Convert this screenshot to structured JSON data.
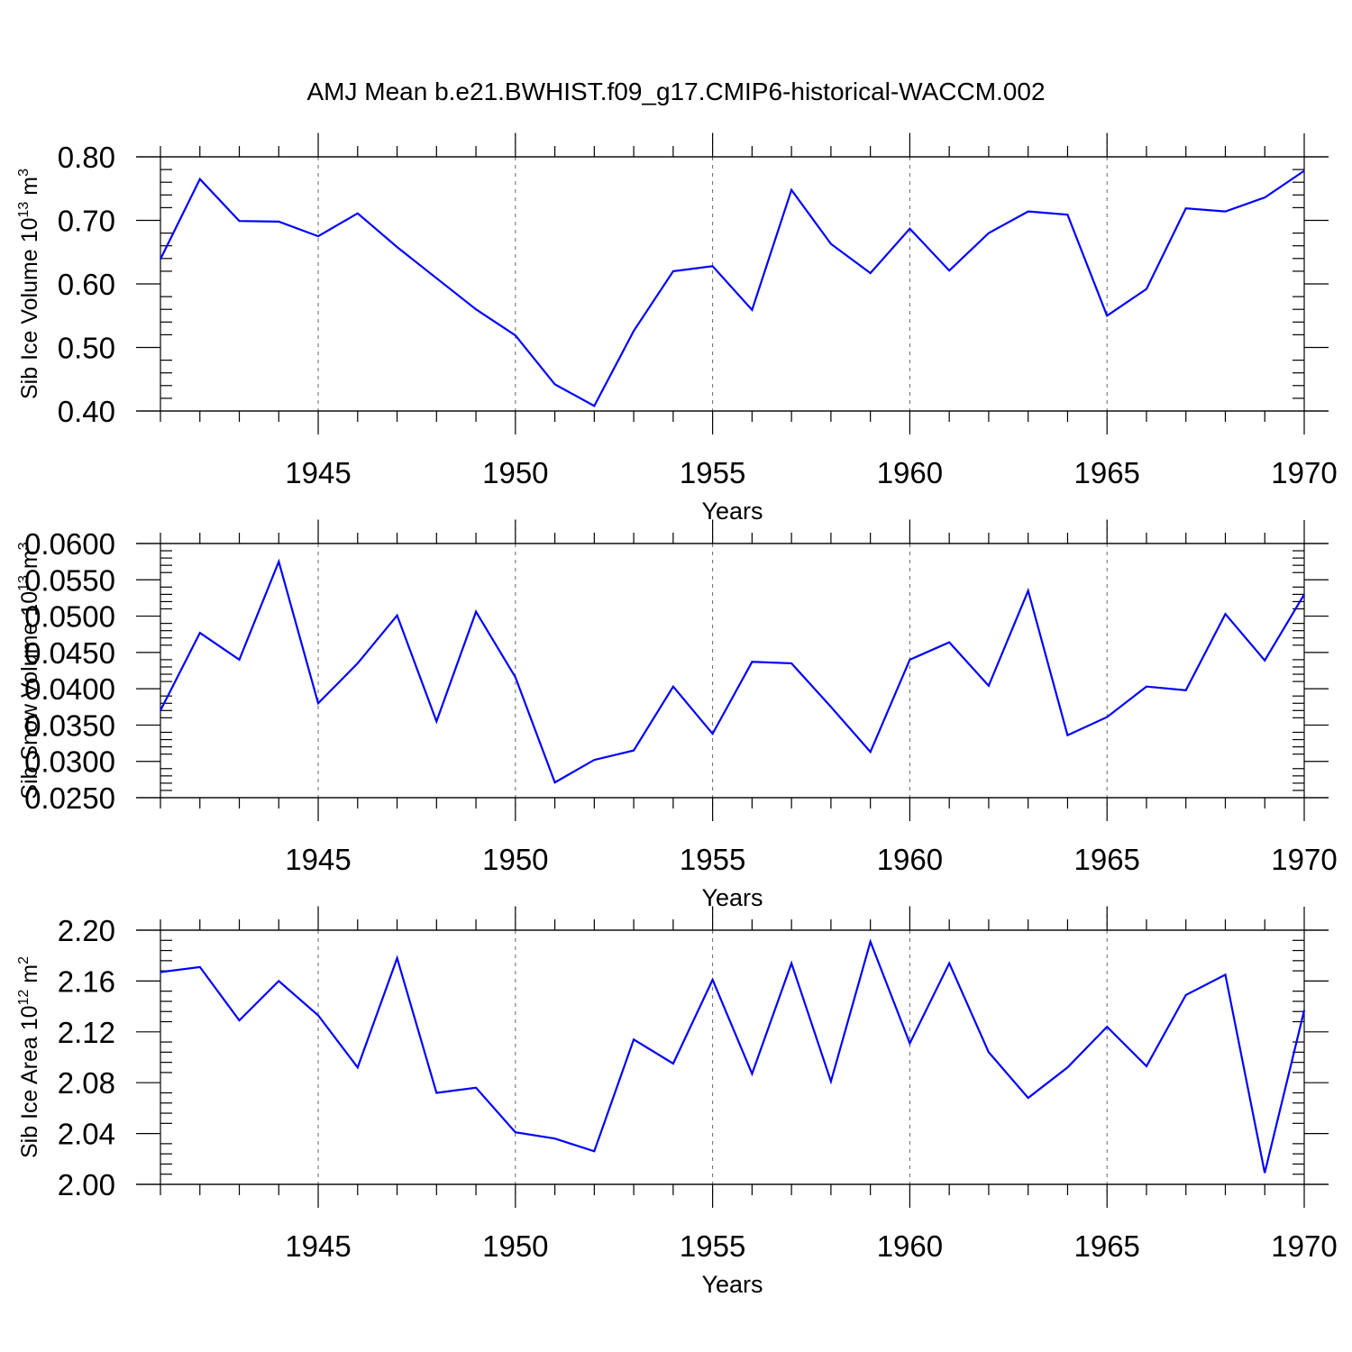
{
  "title": "AMJ Mean b.e21.BWHIST.f09_g17.CMIP6-historical-WACCM.002",
  "colors": {
    "series": "#0000ff",
    "axis": "#000000",
    "grid": "#666666"
  },
  "chart_data": [
    {
      "type": "line",
      "ylabel": "Sib Ice Volume 10",
      "ylabel_exp": "13",
      "ylabel_unit": " m",
      "ylabel_unit_exp": "3",
      "xlabel": "Years",
      "xlim": [
        1941,
        1970
      ],
      "ylim": [
        0.4,
        0.8
      ],
      "x_ticks": [
        1945,
        1950,
        1955,
        1960,
        1965,
        1970
      ],
      "x_tick_labels": [
        "1945",
        "1950",
        "1955",
        "1960",
        "1965",
        "1970"
      ],
      "y_ticks": [
        0.4,
        0.5,
        0.6,
        0.7,
        0.8
      ],
      "y_tick_labels": [
        "0.40",
        "0.50",
        "0.60",
        "0.70",
        "0.80"
      ],
      "grid_x": true,
      "x": [
        1941,
        1942,
        1943,
        1944,
        1945,
        1946,
        1947,
        1948,
        1949,
        1950,
        1951,
        1952,
        1953,
        1954,
        1955,
        1956,
        1957,
        1958,
        1959,
        1960,
        1961,
        1962,
        1963,
        1964,
        1965,
        1966,
        1967,
        1968,
        1969,
        1970
      ],
      "values": [
        0.639,
        0.765,
        0.699,
        0.698,
        0.675,
        0.711,
        0.658,
        0.609,
        0.56,
        0.519,
        0.442,
        0.408,
        0.526,
        0.62,
        0.628,
        0.559,
        0.748,
        0.663,
        0.617,
        0.687,
        0.621,
        0.68,
        0.714,
        0.709,
        0.55,
        0.592,
        0.719,
        0.714,
        0.736,
        0.778
      ]
    },
    {
      "type": "line",
      "ylabel": "Sib Snow Volume 10",
      "ylabel_exp": "13",
      "ylabel_unit": " m",
      "ylabel_unit_exp": "3",
      "xlabel": "Years",
      "xlim": [
        1941,
        1970
      ],
      "ylim": [
        0.025,
        0.06
      ],
      "x_ticks": [
        1945,
        1950,
        1955,
        1960,
        1965,
        1970
      ],
      "x_tick_labels": [
        "1945",
        "1950",
        "1955",
        "1960",
        "1965",
        "1970"
      ],
      "y_ticks": [
        0.025,
        0.03,
        0.035,
        0.04,
        0.045,
        0.05,
        0.055,
        0.06
      ],
      "y_tick_labels": [
        "0.0250",
        "0.0300",
        "0.0350",
        "0.0400",
        "0.0450",
        "0.0500",
        "0.0550",
        "0.0600"
      ],
      "grid_x": true,
      "x": [
        1941,
        1942,
        1943,
        1944,
        1945,
        1946,
        1947,
        1948,
        1949,
        1950,
        1951,
        1952,
        1953,
        1954,
        1955,
        1956,
        1957,
        1958,
        1959,
        1960,
        1961,
        1962,
        1963,
        1964,
        1965,
        1966,
        1967,
        1968,
        1969,
        1970
      ],
      "values": [
        0.037,
        0.0477,
        0.044,
        0.0575,
        0.038,
        0.0435,
        0.0501,
        0.0355,
        0.0506,
        0.0416,
        0.0271,
        0.0302,
        0.0315,
        0.0403,
        0.0338,
        0.0437,
        0.0435,
        0.0375,
        0.0313,
        0.044,
        0.0464,
        0.0404,
        0.0535,
        0.0336,
        0.0361,
        0.0403,
        0.0398,
        0.0503,
        0.0439,
        0.053
      ]
    },
    {
      "type": "line",
      "ylabel": "Sib Ice Area 10",
      "ylabel_exp": "12",
      "ylabel_unit": " m",
      "ylabel_unit_exp": "2",
      "xlabel": "Years",
      "xlim": [
        1941,
        1970
      ],
      "ylim": [
        2.0,
        2.2
      ],
      "x_ticks": [
        1945,
        1950,
        1955,
        1960,
        1965,
        1970
      ],
      "x_tick_labels": [
        "1945",
        "1950",
        "1955",
        "1960",
        "1965",
        "1970"
      ],
      "y_ticks": [
        2.0,
        2.04,
        2.08,
        2.12,
        2.16,
        2.2
      ],
      "y_tick_labels": [
        "2.00",
        "2.04",
        "2.08",
        "2.12",
        "2.16",
        "2.20"
      ],
      "grid_x": true,
      "x": [
        1941,
        1942,
        1943,
        1944,
        1945,
        1946,
        1947,
        1948,
        1949,
        1950,
        1951,
        1952,
        1953,
        1954,
        1955,
        1956,
        1957,
        1958,
        1959,
        1960,
        1961,
        1962,
        1963,
        1964,
        1965,
        1966,
        1967,
        1968,
        1969,
        1970
      ],
      "values": [
        2.167,
        2.171,
        2.129,
        2.16,
        2.133,
        2.092,
        2.178,
        2.072,
        2.076,
        2.041,
        2.036,
        2.026,
        2.114,
        2.095,
        2.161,
        2.087,
        2.174,
        2.081,
        2.191,
        2.111,
        2.174,
        2.104,
        2.068,
        2.092,
        2.124,
        2.093,
        2.149,
        2.165,
        2.009,
        2.137
      ]
    }
  ]
}
